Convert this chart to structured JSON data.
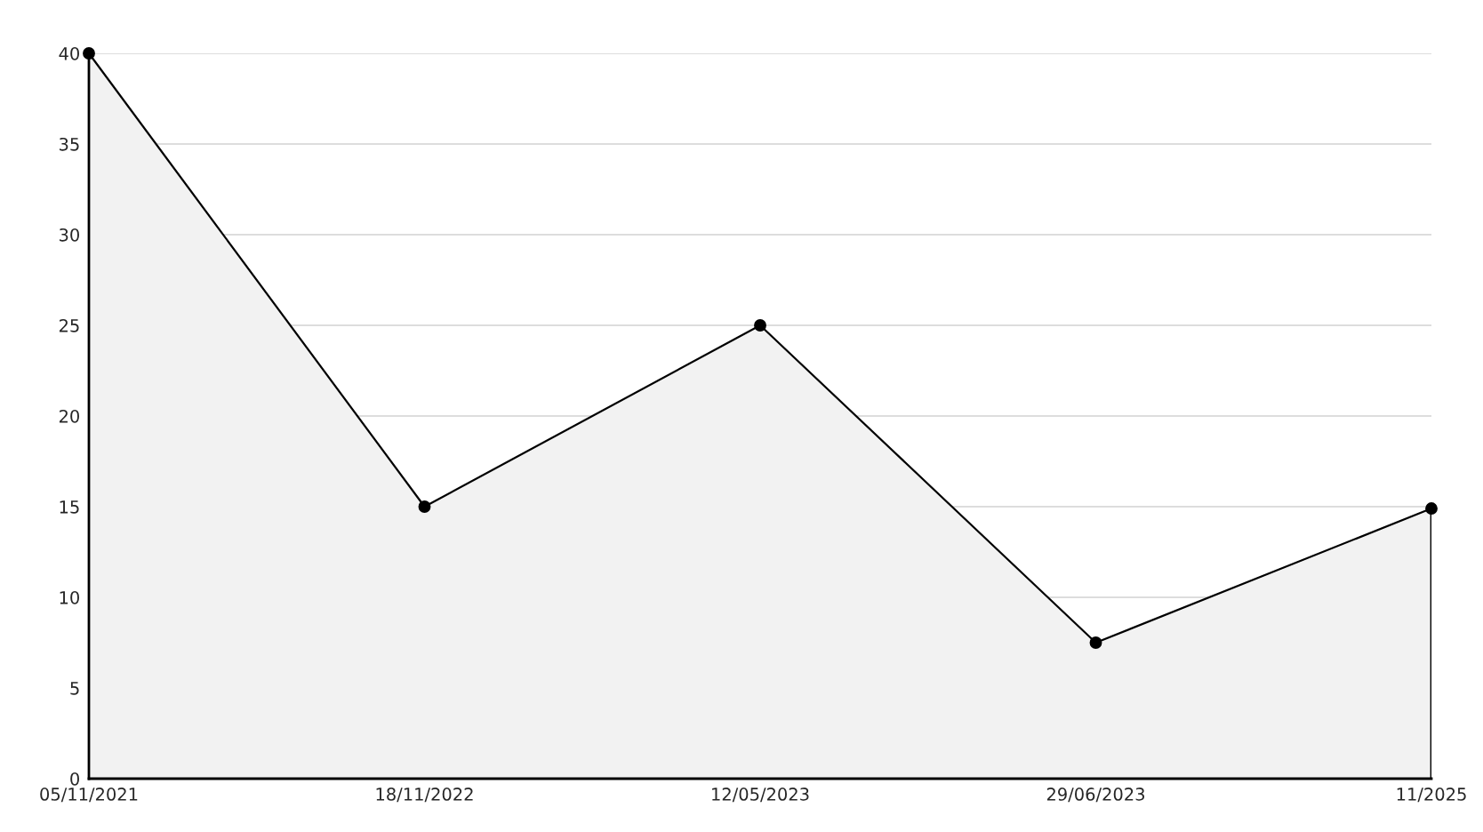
{
  "chart_data": {
    "type": "area",
    "categories": [
      "05/11/2021",
      "18/11/2022",
      "12/05/2023",
      "29/06/2023",
      "11/2025"
    ],
    "series": [
      {
        "color": "#000000",
        "values": [
          40,
          15,
          25,
          7.5,
          14.9
        ]
      }
    ],
    "ylim": [
      0,
      40
    ],
    "yticks": [
      0,
      5,
      10,
      15,
      20,
      25,
      30,
      35,
      40
    ],
    "grid": "y",
    "marker": "circle",
    "line_style": "solid"
  }
}
